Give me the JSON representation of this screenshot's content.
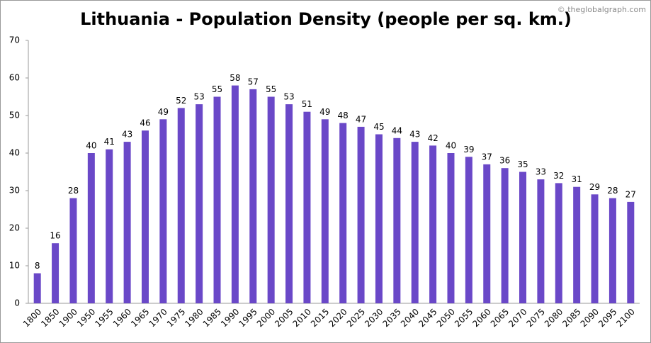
{
  "chart_data": {
    "type": "bar",
    "title": "Lithuania - Population Density (people per sq. km.)",
    "watermark": "© theglobalgraph.com",
    "categories": [
      "1800",
      "1850",
      "1900",
      "1950",
      "1955",
      "1960",
      "1965",
      "1970",
      "1975",
      "1980",
      "1985",
      "1990",
      "1995",
      "2000",
      "2005",
      "2010",
      "2015",
      "2020",
      "2025",
      "2030",
      "2035",
      "2040",
      "2045",
      "2050",
      "2055",
      "2060",
      "2065",
      "2070",
      "2075",
      "2080",
      "2085",
      "2090",
      "2095",
      "2100"
    ],
    "values": [
      8,
      16,
      28,
      40,
      41,
      43,
      46,
      49,
      52,
      53,
      55,
      58,
      57,
      55,
      53,
      51,
      49,
      48,
      47,
      45,
      44,
      43,
      42,
      40,
      39,
      37,
      36,
      35,
      33,
      32,
      31,
      29,
      28,
      27
    ],
    "color": "#6a48c8",
    "ylim": [
      0,
      70
    ],
    "yticks": [
      0,
      10,
      20,
      30,
      40,
      50,
      60,
      70
    ],
    "grid": false
  }
}
